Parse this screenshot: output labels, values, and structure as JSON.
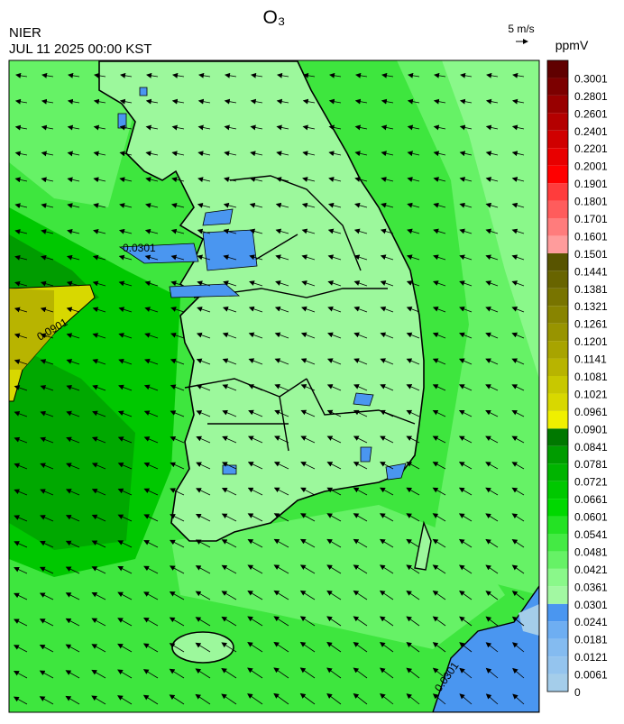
{
  "header": {
    "title": "O₃",
    "agency": "NIER",
    "timestamp": "JUL 11 2025 00:00 KST",
    "wind_scale": "5 m/s"
  },
  "colorbar": {
    "unit": "ppmV",
    "levels": [
      0,
      0.0061,
      0.0121,
      0.0181,
      0.0241,
      0.0301,
      0.0361,
      0.0421,
      0.0481,
      0.0541,
      0.0601,
      0.0661,
      0.0721,
      0.0781,
      0.0841,
      0.0901,
      0.0961,
      0.1021,
      0.1081,
      0.1141,
      0.1201,
      0.1261,
      0.1321,
      0.1381,
      0.1441,
      0.1501,
      0.1601,
      0.1701,
      0.1801,
      0.1901,
      0.2001,
      0.2201,
      0.2401,
      0.2601,
      0.2801,
      0.3001
    ],
    "colors": [
      "#a4cdea",
      "#94c4ee",
      "#84bbf0",
      "#6eaef2",
      "#4a96f0",
      "#a2f8a2",
      "#8af88a",
      "#66f266",
      "#44ea44",
      "#24e224",
      "#00d800",
      "#00c800",
      "#00b400",
      "#009c00",
      "#007800",
      "#f0f000",
      "#d8d800",
      "#c8c800",
      "#b8b400",
      "#a8a400",
      "#989400",
      "#888400",
      "#787400",
      "#686400",
      "#585400",
      "#ff9c9c",
      "#ff7c7c",
      "#ff5c5c",
      "#ff3c3c",
      "#ff0000",
      "#e80000",
      "#d00000",
      "#b40000",
      "#980000",
      "#7c0000",
      "#600000"
    ]
  },
  "map": {
    "contour_labels": [
      "0.0301",
      "0.0901",
      "0.0301"
    ]
  }
}
